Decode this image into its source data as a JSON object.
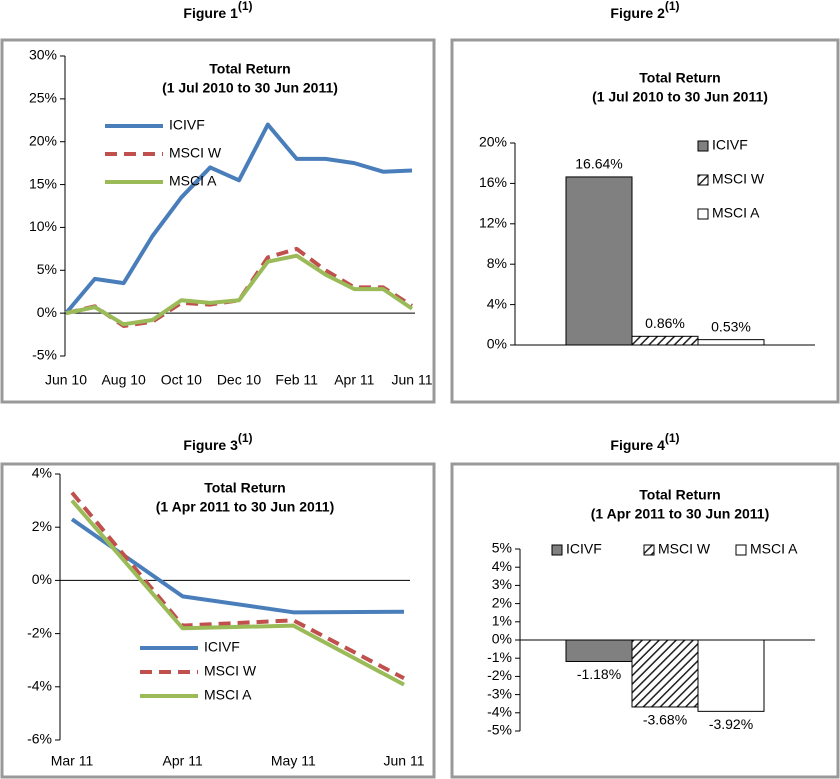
{
  "chart_data": [
    {
      "type": "line",
      "figure": "Figure 1",
      "figure_note": "(1)",
      "title": "Total Return",
      "subtitle": "(1 Jul 2010 to 30 Jun 2011)",
      "categories": [
        "Jun 10",
        null,
        "Aug 10",
        null,
        "Oct 10",
        null,
        "Dec 10",
        null,
        "Feb 11",
        null,
        "Apr 11",
        null,
        "Jun 11"
      ],
      "series": [
        {
          "name": "ICIVF",
          "color": "#4a7ebb",
          "values": [
            0,
            4,
            3.5,
            9,
            13.5,
            17,
            15.5,
            22,
            18,
            18,
            17.5,
            16.5,
            16.64
          ]
        },
        {
          "name": "MSCI W",
          "color": "#c0504d",
          "dashed": true,
          "values": [
            0,
            0.8,
            -1.5,
            -1,
            1.2,
            1,
            1.5,
            6.5,
            7.5,
            5,
            3,
            3,
            0.86
          ]
        },
        {
          "name": "MSCI A",
          "color": "#9bbb59",
          "values": [
            0,
            0.7,
            -1.3,
            -0.8,
            1.5,
            1.2,
            1.5,
            6,
            6.7,
            4.5,
            2.8,
            2.8,
            0.53
          ]
        }
      ],
      "ylim": [
        -5,
        30
      ],
      "yticks": [
        {
          "value": -5,
          "label": "-5%"
        },
        {
          "value": 0,
          "label": "0%"
        },
        {
          "value": 5,
          "label": "5%"
        },
        {
          "value": 10,
          "label": "10%"
        },
        {
          "value": 15,
          "label": "15%"
        },
        {
          "value": 20,
          "label": "20%"
        },
        {
          "value": 25,
          "label": "25%"
        },
        {
          "value": 30,
          "label": "30%"
        }
      ],
      "legend": "upper left"
    },
    {
      "type": "bar",
      "figure": "Figure 2",
      "figure_note": "(1)",
      "title": "Total Return",
      "subtitle": "(1 Jul 2010 to 30 Jun 2011)",
      "series": [
        {
          "name": "ICIVF",
          "color": "#808080",
          "values": [
            16.64
          ],
          "value_labels": [
            "16.64%"
          ]
        },
        {
          "name": "MSCI W",
          "color": "#222222",
          "hatch": true,
          "values": [
            0.86
          ],
          "value_labels": [
            "0.86%"
          ]
        },
        {
          "name": "MSCI A",
          "color": "#ffffff",
          "values": [
            0.53
          ],
          "value_labels": [
            "0.53%"
          ]
        }
      ],
      "ylim": [
        0,
        20
      ],
      "yticks": [
        {
          "value": 0,
          "label": "0%"
        },
        {
          "value": 4,
          "label": "4%"
        },
        {
          "value": 8,
          "label": "8%"
        },
        {
          "value": 12,
          "label": "12%"
        },
        {
          "value": 16,
          "label": "16%"
        },
        {
          "value": 20,
          "label": "20%"
        }
      ],
      "legend": "upper right"
    },
    {
      "type": "line",
      "figure": "Figure 3",
      "figure_note": "(1)",
      "title": "Total Return",
      "subtitle": "(1 Apr 2011 to 30 Jun 2011)",
      "categories": [
        "Mar 11",
        "Apr 11",
        "May 11",
        "Jun 11"
      ],
      "series": [
        {
          "name": "ICIVF",
          "color": "#4a7ebb",
          "values": [
            2.3,
            -0.6,
            -1.2,
            -1.18
          ]
        },
        {
          "name": "MSCI W",
          "color": "#c0504d",
          "dashed": true,
          "values": [
            3.3,
            -1.7,
            -1.5,
            -3.68
          ]
        },
        {
          "name": "MSCI A",
          "color": "#9bbb59",
          "values": [
            3,
            -1.8,
            -1.7,
            -3.92
          ]
        }
      ],
      "ylim": [
        -6,
        4
      ],
      "yticks": [
        {
          "value": -6,
          "label": "-6%"
        },
        {
          "value": -4,
          "label": "-4%"
        },
        {
          "value": -2,
          "label": "-2%"
        },
        {
          "value": 0,
          "label": "0%"
        },
        {
          "value": 2,
          "label": "2%"
        },
        {
          "value": 4,
          "label": "4%"
        }
      ],
      "legend": "lower center"
    },
    {
      "type": "bar",
      "figure": "Figure 4",
      "figure_note": "(1)",
      "title": "Total Return",
      "subtitle": "(1 Apr 2011 to 30 Jun 2011)",
      "series": [
        {
          "name": "ICIVF",
          "color": "#808080",
          "values": [
            -1.18
          ],
          "value_labels": [
            "-1.18%"
          ]
        },
        {
          "name": "MSCI W",
          "color": "#222222",
          "hatch": true,
          "values": [
            -3.68
          ],
          "value_labels": [
            "-3.68%"
          ]
        },
        {
          "name": "MSCI A",
          "color": "#ffffff",
          "values": [
            -3.92
          ],
          "value_labels": [
            "-3.92%"
          ]
        }
      ],
      "ylim": [
        -5,
        5
      ],
      "yticks": [
        {
          "value": -5,
          "label": "-5%"
        },
        {
          "value": -4,
          "label": "-4%"
        },
        {
          "value": -3,
          "label": "-3%"
        },
        {
          "value": -2,
          "label": "-2%"
        },
        {
          "value": -1,
          "label": "-1%"
        },
        {
          "value": 0,
          "label": "0%"
        },
        {
          "value": 1,
          "label": "1%"
        },
        {
          "value": 2,
          "label": "2%"
        },
        {
          "value": 3,
          "label": "3%"
        },
        {
          "value": 4,
          "label": "4%"
        },
        {
          "value": 5,
          "label": "5%"
        }
      ],
      "legend": "upper center"
    }
  ]
}
